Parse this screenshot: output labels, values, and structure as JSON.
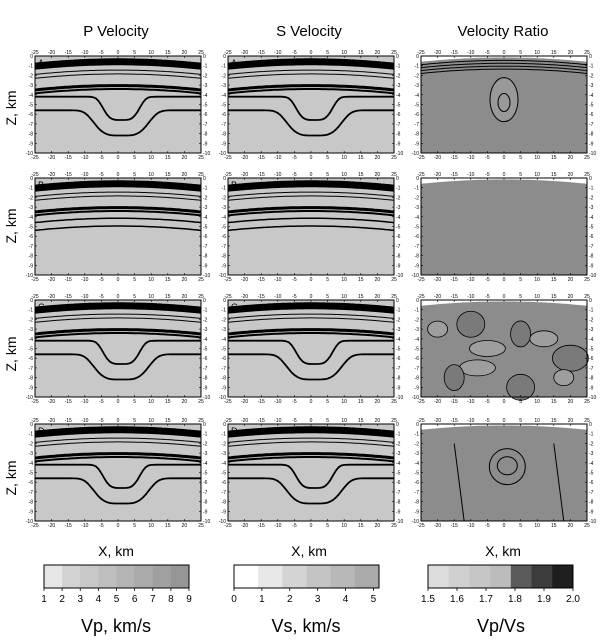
{
  "columns": [
    {
      "id": "p",
      "title": "P Velocity"
    },
    {
      "id": "s",
      "title": "S Velocity"
    },
    {
      "id": "r",
      "title": "Velocity Ratio"
    }
  ],
  "rows": [
    {
      "label": "A"
    },
    {
      "label": "B"
    },
    {
      "label": "C"
    },
    {
      "label": "D"
    }
  ],
  "ylabel": "Z, km",
  "xlabel": "X, km",
  "colorbars": [
    {
      "label": "Vp, km/s",
      "ticks": [
        "1",
        "2",
        "3",
        "4",
        "5",
        "6",
        "7",
        "8",
        "9"
      ],
      "range": [
        1,
        9
      ]
    },
    {
      "label": "Vs, km/s",
      "ticks": [
        "0",
        "1",
        "2",
        "3",
        "4",
        "5"
      ],
      "range": [
        0,
        5.2
      ]
    },
    {
      "label": "Vp/Vs",
      "ticks": [
        "1.5",
        "1.6",
        "1.7",
        "1.8",
        "1.9",
        "2.0"
      ],
      "range": [
        1.5,
        2.0
      ]
    }
  ],
  "chart_data": {
    "type": "heatmap",
    "xlabel": "X, km",
    "ylabel": "Z, km",
    "xlim": [
      -25,
      25
    ],
    "ylim": [
      0,
      -10
    ],
    "xticks": [
      -25,
      -20,
      -15,
      -10,
      -5,
      0,
      5,
      10,
      15,
      20,
      25
    ],
    "yticks": [
      0,
      -1,
      -2,
      -3,
      -4,
      -5,
      -6,
      -7,
      -8,
      -9,
      -10
    ],
    "colorscales": [
      {
        "label": "Vp, km/s",
        "min": 1,
        "max": 9,
        "colors": [
          "#e6e6e6",
          "#d2d2d2",
          "#c8c8c8",
          "#bebebe",
          "#b4b4b4",
          "#aaaaaa",
          "#a0a0a0",
          "#969696"
        ]
      },
      {
        "label": "Vs, km/s",
        "min": 0,
        "max": 5.2,
        "colors": [
          "#ffffff",
          "#e8e8e8",
          "#d4d4d4",
          "#c4c4c4",
          "#b8b8b8",
          "#aaaaaa"
        ]
      },
      {
        "label": "Vp/Vs",
        "min": 1.5,
        "max": 2.0,
        "colors": [
          "#dcdcdc",
          "#d0d0d0",
          "#c6c6c6",
          "#bcbcbc",
          "#5a5a5a",
          "#3c3c3c",
          "#1e1e1e"
        ]
      }
    ],
    "panels": [
      {
        "row": "A",
        "variant": "vel-basin",
        "ratio": "anomaly"
      },
      {
        "row": "B",
        "variant": "vel-flat",
        "ratio": "uniform"
      },
      {
        "row": "C",
        "variant": "vel-basin",
        "ratio": "complex"
      },
      {
        "row": "D",
        "variant": "vel-basin",
        "ratio": "smooth"
      }
    ]
  }
}
